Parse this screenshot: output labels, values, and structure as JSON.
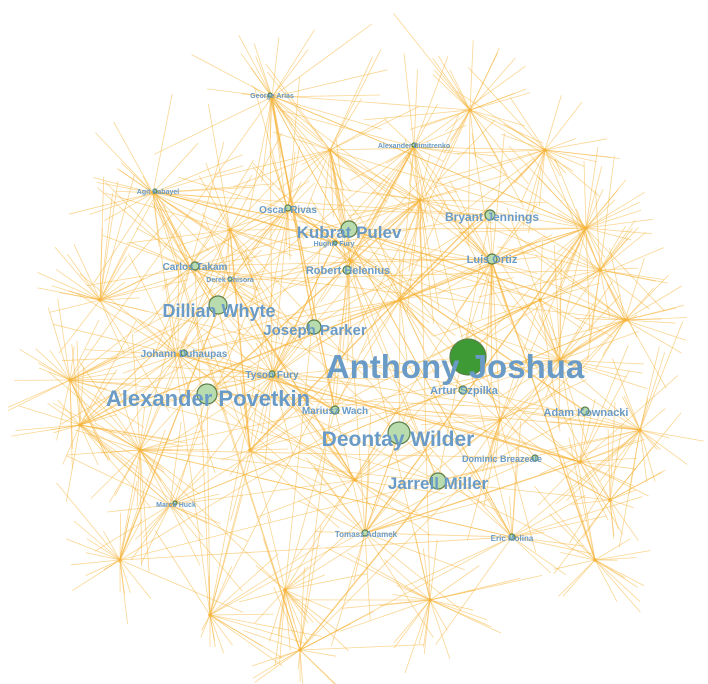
{
  "colors": {
    "edge": "#f6b43a",
    "label": "#6a9bc6",
    "label_primary": "#2f6fa8",
    "node_fill": "#b9dcae",
    "node_primary": "#3e9a34"
  },
  "nodes": [
    {
      "id": "anthony-joshua",
      "label": "Anthony Joshua",
      "size": "xl",
      "primary": true
    },
    {
      "id": "alexander-povetkin",
      "label": "Alexander Povetkin",
      "size": "lg"
    },
    {
      "id": "deontay-wilder",
      "label": "Deontay Wilder",
      "size": "lg"
    },
    {
      "id": "dillian-whyte",
      "label": "Dillian Whyte",
      "size": "md"
    },
    {
      "id": "kubrat-pulev",
      "label": "Kubrat Pulev",
      "size": "md"
    },
    {
      "id": "jarrell-miller",
      "label": "Jarrell Miller",
      "size": "md"
    },
    {
      "id": "joseph-parker",
      "label": "Joseph Parker",
      "size": "sm"
    },
    {
      "id": "bryant-jennings",
      "label": "Bryant Jennings",
      "size": "sm"
    },
    {
      "id": "luis-ortiz",
      "label": "Luis Ortiz",
      "size": "sm"
    },
    {
      "id": "robert-helenius",
      "label": "Robert Helenius",
      "size": "sm"
    },
    {
      "id": "artur-szpilka",
      "label": "Artur Szpilka",
      "size": "sm"
    },
    {
      "id": "adam-kownacki",
      "label": "Adam Kownacki",
      "size": "sm"
    },
    {
      "id": "mariusz-wach",
      "label": "Mariusz Wach",
      "size": "sm"
    },
    {
      "id": "carlos-takam",
      "label": "Carlos Takam",
      "size": "xs"
    },
    {
      "id": "johann-duhaupas",
      "label": "Johann Duhaupas",
      "size": "xs"
    },
    {
      "id": "tyson-fury",
      "label": "Tyson Fury",
      "size": "xs"
    },
    {
      "id": "oscar-rivas",
      "label": "Oscar Rivas",
      "size": "xs"
    },
    {
      "id": "dominic-breazeale",
      "label": "Dominic Breazeale",
      "size": "xs"
    },
    {
      "id": "tomasz-adamek",
      "label": "Tomasz Adamek",
      "size": "xxs"
    },
    {
      "id": "eric-molina",
      "label": "Eric Molina",
      "size": "xxs"
    },
    {
      "id": "agit-kabayel",
      "label": "Agit Kabayel",
      "size": "xxs"
    },
    {
      "id": "marco-huck",
      "label": "Marco Huck",
      "size": "xxs"
    },
    {
      "id": "george-arias",
      "label": "George Arias",
      "size": "xxs"
    },
    {
      "id": "alexander-dimitrenko",
      "label": "Alexander Dimitrenko",
      "size": "xxs"
    },
    {
      "id": "hughie-fury",
      "label": "Hughie Fury",
      "size": "xxs"
    },
    {
      "id": "derek-chisora",
      "label": "Derek Chisora",
      "size": "xxs"
    }
  ]
}
